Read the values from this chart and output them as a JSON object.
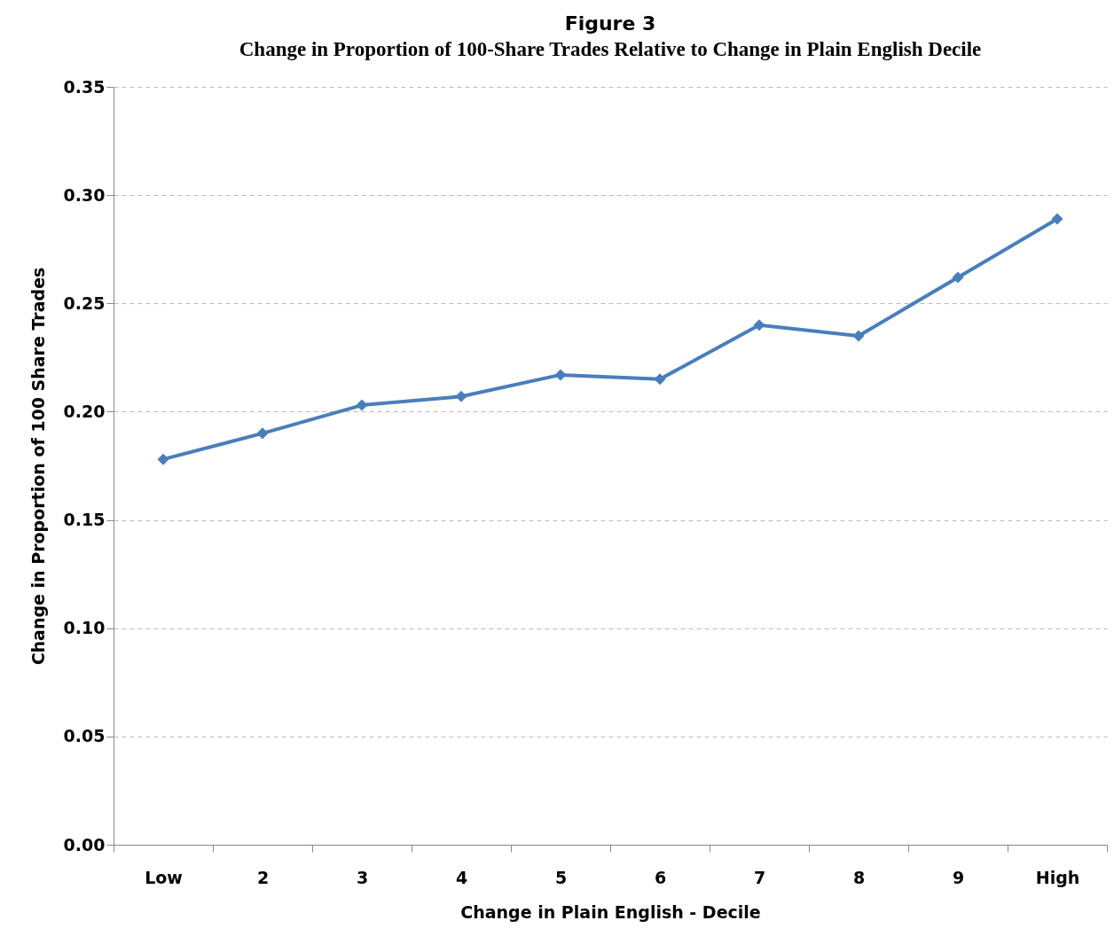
{
  "chart_data": {
    "type": "line",
    "title": "Figure 3",
    "subtitle": "Change in Proportion of 100-Share Trades Relative to Change in Plain English Decile",
    "xlabel": "Change in Plain English -  Decile",
    "ylabel": "Change in Proportion of 100 Share Trades",
    "categories": [
      "Low",
      "2",
      "3",
      "4",
      "5",
      "6",
      "7",
      "8",
      "9",
      "High"
    ],
    "series": [
      {
        "color": "#4a7ebb",
        "values": [
          0.178,
          0.19,
          0.203,
          0.207,
          0.217,
          0.215,
          0.24,
          0.235,
          0.262,
          0.289
        ]
      }
    ],
    "ylim": [
      0,
      0.35
    ],
    "yticks": [
      {
        "value": 0,
        "label": "0.00"
      },
      {
        "value": 0.05,
        "label": "0.05"
      },
      {
        "value": 0.1,
        "label": "0.10"
      },
      {
        "value": 0.15,
        "label": "0.15"
      },
      {
        "value": 0.2,
        "label": "0.20"
      },
      {
        "value": 0.25,
        "label": "0.25"
      },
      {
        "value": 0.3,
        "label": "0.30"
      },
      {
        "value": 0.35,
        "label": "0.35"
      }
    ],
    "grid": "y",
    "marker": "diamond",
    "line_style": "solid"
  }
}
